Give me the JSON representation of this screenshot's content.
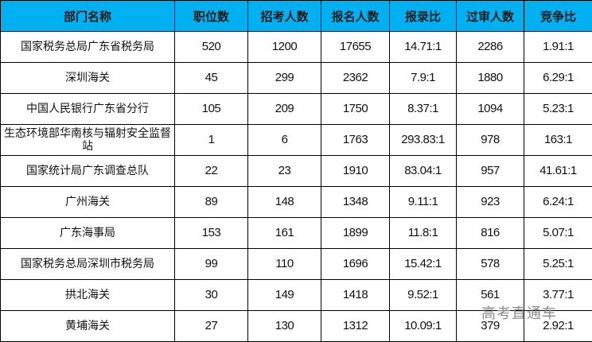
{
  "table": {
    "headers": [
      "部门名称",
      "职位数",
      "招考人数",
      "报名人数",
      "报录比",
      "过审人数",
      "竞争比"
    ],
    "rows": [
      [
        "国家税务总局广东省税务局",
        "520",
        "1200",
        "17655",
        "14.71:1",
        "2286",
        "1.91:1"
      ],
      [
        "深圳海关",
        "45",
        "299",
        "2362",
        "7.9:1",
        "1880",
        "6.29:1"
      ],
      [
        "中国人民银行广东省分行",
        "105",
        "209",
        "1750",
        "8.37:1",
        "1094",
        "5.23:1"
      ],
      [
        "生态环境部华南核与辐射安全监督站",
        "1",
        "6",
        "1763",
        "293.83:1",
        "978",
        "163:1"
      ],
      [
        "国家统计局广东调查总队",
        "22",
        "23",
        "1910",
        "83.04:1",
        "957",
        "41.61:1"
      ],
      [
        "广州海关",
        "89",
        "148",
        "1348",
        "9.11:1",
        "923",
        "6.24:1"
      ],
      [
        "广东海事局",
        "153",
        "161",
        "1899",
        "11.8:1",
        "816",
        "5.07:1"
      ],
      [
        "国家税务总局深圳市税务局",
        "99",
        "110",
        "1696",
        "15.42:1",
        "578",
        "5.25:1"
      ],
      [
        "拱北海关",
        "30",
        "149",
        "1418",
        "9.52:1",
        "561",
        "3.77:1"
      ],
      [
        "黄埔海关",
        "27",
        "130",
        "1312",
        "10.09:1",
        "379",
        "2.92:1"
      ]
    ],
    "header_color": "#00b0f0"
  },
  "watermark": "高考直通车"
}
